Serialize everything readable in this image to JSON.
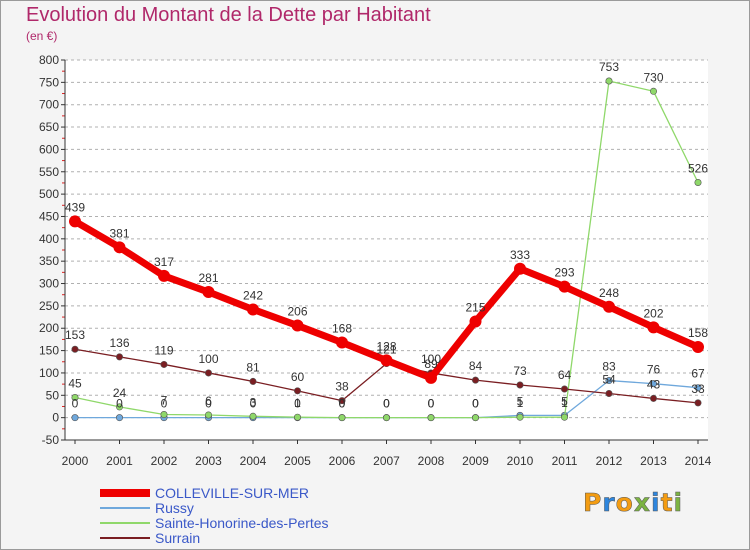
{
  "title": "Evolution du Montant de la Dette par Habitant",
  "unit": "(en €)",
  "logo_text": "Proxiti",
  "colors": {
    "background": "#f4f4f4",
    "title": "#b0286a",
    "legend_text": "#3a58c8",
    "axis": "#333333",
    "grid": "#b0b0b0",
    "logo": [
      "#f39c12",
      "#2e86de",
      "#f39c12",
      "#7cb342",
      "#2e86de",
      "#f39c12",
      "#7cb342"
    ]
  },
  "chart_data": {
    "type": "line",
    "x": [
      2000,
      2001,
      2002,
      2003,
      2004,
      2005,
      2006,
      2007,
      2008,
      2009,
      2010,
      2011,
      2012,
      2013,
      2014
    ],
    "ylim": [
      -50,
      800
    ],
    "yticks": [
      -50,
      0,
      50,
      100,
      150,
      200,
      250,
      300,
      350,
      400,
      450,
      500,
      550,
      600,
      650,
      700,
      750,
      800
    ],
    "grid": "horizontal dashed",
    "legend_position": "bottom-left",
    "series": [
      {
        "name": "COLLEVILLE-SUR-MER",
        "color": "#ee0000",
        "values": [
          439,
          381,
          317,
          281,
          242,
          206,
          168,
          128,
          89,
          215,
          333,
          293,
          248,
          202,
          158
        ],
        "labels": [
          "439",
          "381",
          "317",
          "281",
          "242",
          "206",
          "168",
          "128",
          "89",
          "215",
          "333",
          "293",
          "248",
          "202",
          "158"
        ]
      },
      {
        "name": "Russy",
        "color": "#6fa8dc",
        "values": [
          0,
          0,
          0,
          0,
          0,
          0,
          0,
          0,
          0,
          0,
          5,
          5,
          83,
          76,
          67
        ],
        "labels": [
          "0",
          "0",
          "0",
          "0",
          "0",
          "0",
          "0",
          "0",
          "0",
          "0",
          "5",
          "5",
          "83",
          "76",
          "67"
        ]
      },
      {
        "name": "Sainte-Honorine-des-Pertes",
        "color": "#8fd86a",
        "values": [
          45,
          24,
          7,
          6,
          3,
          1,
          0,
          0,
          0,
          0,
          1,
          1,
          753,
          730,
          526
        ],
        "labels": [
          "45",
          "24",
          "7",
          "6",
          "3",
          "1",
          "0",
          "0",
          "0",
          "0",
          "1",
          "1",
          "753",
          "730",
          "526"
        ]
      },
      {
        "name": "Surrain",
        "color": "#7a1e22",
        "values": [
          153,
          136,
          119,
          100,
          81,
          60,
          38,
          121,
          100,
          84,
          73,
          64,
          54,
          43,
          33
        ],
        "labels": [
          "153",
          "136",
          "119",
          "100",
          "81",
          "60",
          "38",
          "121",
          "100",
          "84",
          "73",
          "64",
          "54",
          "43",
          "33"
        ]
      }
    ]
  }
}
